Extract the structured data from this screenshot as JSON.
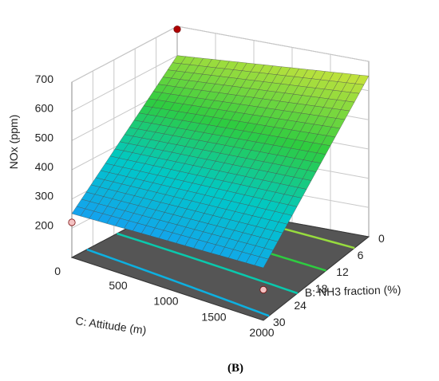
{
  "chart_data": {
    "type": "surface3d",
    "panel_label": "(B)",
    "zlabel": "NOx (ppm)",
    "xlabel": "C: Attitude (m)",
    "ylabel": "B: NH3 fraction (%)",
    "z_ticks": [
      "200",
      "300",
      "400",
      "500",
      "600",
      "700"
    ],
    "x_ticks": [
      "0",
      "500",
      "1000",
      "1500",
      "2000"
    ],
    "y_ticks": [
      "0",
      "6",
      "12",
      "18",
      "24",
      "30"
    ],
    "zlim": [
      100,
      700
    ],
    "xlim": [
      0,
      2000
    ],
    "ylim": [
      0,
      30
    ],
    "surface_corners": {
      "attitude_0_nh3_0": 600,
      "attitude_2000_nh3_0": 650,
      "attitude_0_nh3_30": 250,
      "attitude_2000_nh3_30": 280
    },
    "design_points": [
      {
        "attitude": 0,
        "nh3": 0,
        "nox": 690,
        "color": "#b00000"
      },
      {
        "attitude": 0,
        "nh3": 30,
        "nox": 220,
        "color": "#f4c2c2"
      },
      {
        "attitude": 2000,
        "nh3": 30,
        "nox": 205,
        "color": "#f4c2c2"
      }
    ],
    "contour_levels": [
      300,
      400,
      500,
      600
    ],
    "colors": {
      "low": "#1e90ff",
      "mid": "#2ecc40",
      "high": "#ffeb3b",
      "floor": "#555555"
    }
  }
}
